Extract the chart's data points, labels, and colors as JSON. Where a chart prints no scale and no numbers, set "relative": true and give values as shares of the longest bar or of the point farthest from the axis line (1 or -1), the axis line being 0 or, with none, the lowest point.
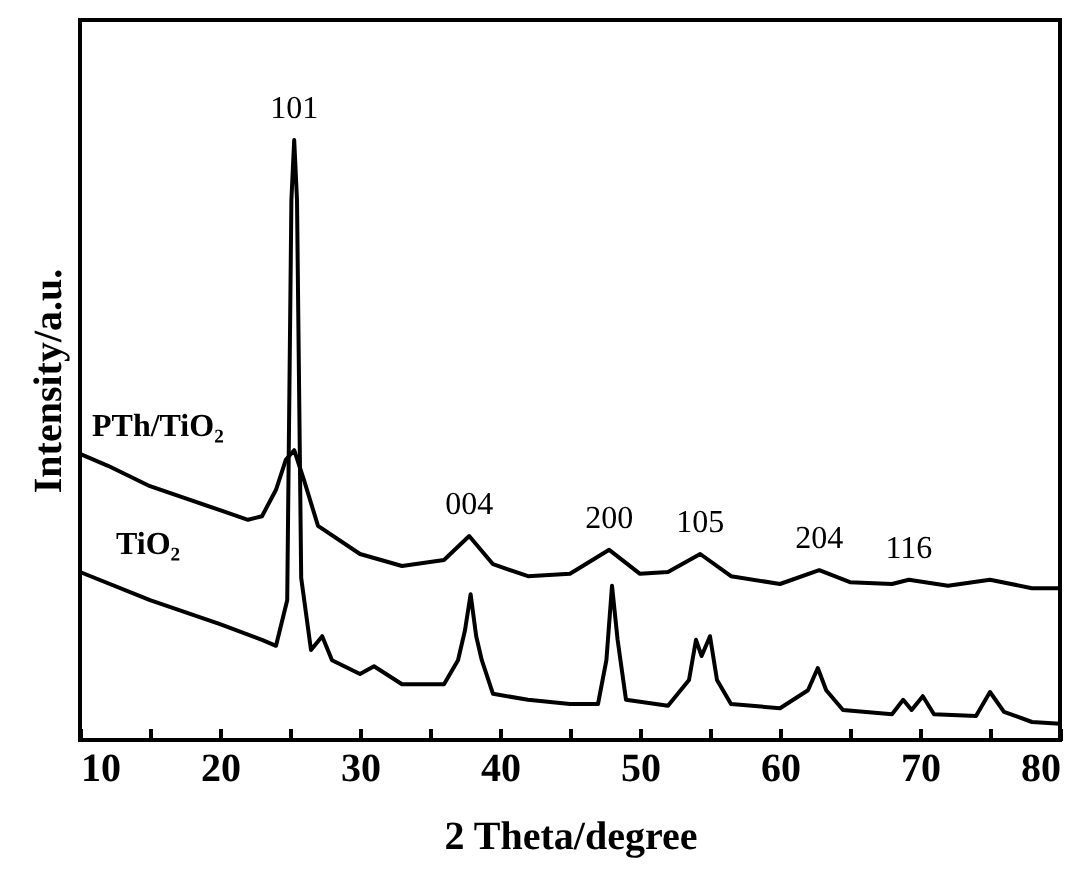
{
  "chart_data": {
    "type": "line",
    "relative": true,
    "xlabel": "2 Theta/degree",
    "ylabel": "Intensity/a.u.",
    "xlim": [
      10,
      80
    ],
    "xticks": [
      10,
      {
        "value": 15,
        "label": null
      },
      20,
      {
        "value": 25,
        "label": null
      },
      30,
      {
        "value": 35,
        "label": null
      },
      40,
      {
        "value": 45,
        "label": null
      },
      50,
      {
        "value": 55,
        "label": null
      },
      60,
      {
        "value": 65,
        "label": null
      },
      70,
      {
        "value": 75,
        "label": null
      },
      80
    ],
    "tick_labels": "x",
    "grid": false,
    "legend": false,
    "marker": "none",
    "line_style": "solid",
    "annotations": [
      {
        "text": "101",
        "x": 25.3,
        "y": 1.0
      },
      {
        "text": "004",
        "x": 37.8,
        "y": 0.34
      },
      {
        "text": "200",
        "x": 47.8,
        "y": 0.317
      },
      {
        "text": "105",
        "x": 54.3,
        "y": 0.31
      },
      {
        "text": "204",
        "x": 62.8,
        "y": 0.283
      },
      {
        "text": "116",
        "x": 69.2,
        "y": 0.267
      }
    ],
    "series": [
      {
        "name": "PTh/TiO₂",
        "color": "#000000",
        "x": [
          10,
          12,
          15,
          20,
          22,
          23,
          24,
          24.7,
          25.3,
          26,
          27,
          30,
          33,
          36,
          37.8,
          39.5,
          42,
          45,
          47.8,
          50,
          52,
          54.3,
          56.5,
          60,
          62.8,
          65,
          68,
          69.2,
          72,
          75,
          78,
          80
        ],
        "values": [
          0.477,
          0.457,
          0.423,
          0.383,
          0.367,
          0.373,
          0.417,
          0.467,
          0.483,
          0.433,
          0.357,
          0.31,
          0.29,
          0.3,
          0.34,
          0.293,
          0.273,
          0.277,
          0.317,
          0.277,
          0.28,
          0.31,
          0.273,
          0.26,
          0.283,
          0.263,
          0.26,
          0.267,
          0.257,
          0.267,
          0.253,
          0.253
        ]
      },
      {
        "name": "TiO₂",
        "color": "#000000",
        "x": [
          10,
          15,
          20,
          23,
          24,
          24.8,
          25.1,
          25.3,
          25.5,
          25.8,
          26.5,
          27.3,
          28,
          30,
          31,
          33,
          36,
          37,
          37.5,
          37.9,
          38.3,
          38.7,
          39.5,
          42,
          45,
          47,
          47.6,
          48,
          48.4,
          49,
          52,
          53.5,
          54,
          54.4,
          55,
          55.5,
          56.5,
          60,
          62,
          62.7,
          63.3,
          64.5,
          68,
          68.8,
          69.4,
          70.2,
          71,
          74,
          75,
          76,
          78,
          80
        ],
        "values": [
          0.28,
          0.233,
          0.193,
          0.167,
          0.157,
          0.233,
          0.9,
          1.0,
          0.9,
          0.27,
          0.15,
          0.173,
          0.133,
          0.11,
          0.123,
          0.093,
          0.093,
          0.133,
          0.183,
          0.243,
          0.173,
          0.133,
          0.077,
          0.067,
          0.06,
          0.06,
          0.133,
          0.257,
          0.167,
          0.067,
          0.057,
          0.1,
          0.167,
          0.14,
          0.173,
          0.1,
          0.06,
          0.053,
          0.083,
          0.12,
          0.083,
          0.05,
          0.043,
          0.067,
          0.05,
          0.073,
          0.043,
          0.04,
          0.08,
          0.047,
          0.03,
          0.027
        ]
      }
    ]
  }
}
